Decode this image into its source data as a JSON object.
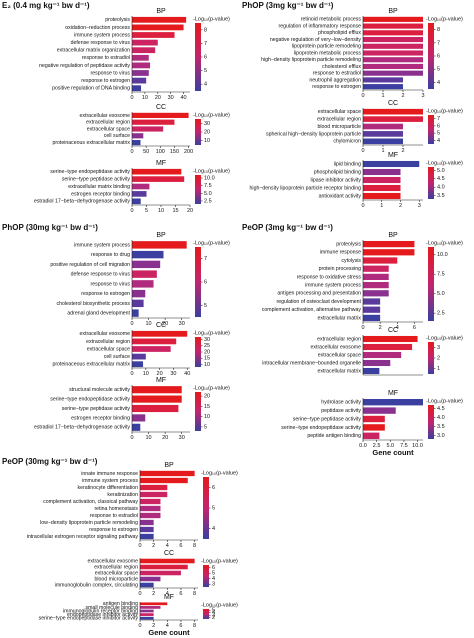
{
  "chart_data": [
    {
      "title": "E₂ (0.4 mg kg⁻¹ bw d⁻¹)",
      "charts": [
        {
          "type": "bar",
          "orientation": "horizontal",
          "title": "BP",
          "categories": [
            "proteolysis",
            "oxidation−reduction process",
            "immune system process",
            "defense response to virus",
            "extracellular matrix organization",
            "response to estradiol",
            "negative regulation of peptidase activity",
            "response to virus",
            "response to estrogen",
            "positive regulation of DNA binding"
          ],
          "values": [
            42,
            40,
            33,
            20,
            18,
            13,
            14,
            13,
            11,
            7
          ],
          "colors": [
            "#e41a1c",
            "#e41a1c",
            "#dc1f3e",
            "#cc2463",
            "#cc2463",
            "#b02b7e",
            "#b02b7e",
            "#8a3190",
            "#5a3a9c",
            "#3b3f9f"
          ],
          "xlim": [
            0,
            45
          ],
          "xticks": [
            0,
            10,
            20,
            30,
            40
          ],
          "legend_title": "-Log₁₀(p-value)",
          "clim": [
            3.5,
            8.5
          ],
          "cticks": [
            4,
            5,
            6,
            7,
            8
          ],
          "cmap": [
            "#3b3f9f",
            "#c2246e",
            "#e41a1c"
          ]
        },
        {
          "type": "bar",
          "orientation": "horizontal",
          "title": "CC",
          "categories": [
            "extracellular exosome",
            "extracellular region",
            "extracellular space",
            "cell surface",
            "proteinaceous extracellular matrix"
          ],
          "values": [
            200,
            150,
            110,
            40,
            30
          ],
          "colors": [
            "#e41a1c",
            "#dc1f3e",
            "#cc2463",
            "#8a3190",
            "#3b3f9f"
          ],
          "xlim": [
            0,
            205
          ],
          "xticks": [
            0,
            50,
            100,
            150,
            200
          ],
          "legend_title": "-Log₁₀(p-value)",
          "clim": [
            5,
            35
          ],
          "cticks": [
            10,
            20,
            30
          ],
          "cmap": [
            "#3b3f9f",
            "#c2246e",
            "#e41a1c"
          ]
        },
        {
          "type": "bar",
          "orientation": "horizontal",
          "title": "MF",
          "categories": [
            "serine−type endopeptidase activity",
            "serine−type peptidase activity",
            "extracellular matrix binding",
            "estrogen receptor binding",
            "estradiol 17−beta−dehydrogenase activity"
          ],
          "values": [
            17,
            18,
            6,
            5,
            3
          ],
          "colors": [
            "#e41a1c",
            "#dc1f3e",
            "#b02b7e",
            "#5a3a9c",
            "#3b3f9f"
          ],
          "xlim": [
            0,
            20
          ],
          "xticks": [
            0,
            5,
            10,
            15,
            20
          ],
          "legend_title": "-Log₁₀(p-value)",
          "clim": [
            1.5,
            11
          ],
          "cticks": [
            {
              "value": 2.5,
              "label": "2.5"
            },
            {
              "value": 5,
              "label": "5.0"
            },
            {
              "value": 7.5,
              "label": "7.5"
            },
            {
              "value": 10,
              "label": "10.0"
            }
          ],
          "cmap": [
            "#3b3f9f",
            "#c2246e",
            "#e41a1c"
          ]
        }
      ]
    },
    {
      "title": "PhOP (3mg kg⁻¹ bw d⁻¹)",
      "charts": [
        {
          "type": "bar",
          "orientation": "horizontal",
          "title": "BP",
          "categories": [
            "retinoid metabolic process",
            "regulation of inflammatory response",
            "phospholipid efflux",
            "negative regulation of very−low−density",
            "lipoprotein particle remodeling",
            "lipoprotein metabolic process",
            "high−density lipoprotein particle remodeling",
            "cholesterol efflux",
            "response to estradiol",
            "neutrophil aggregation",
            "response to estrogen"
          ],
          "values": [
            3,
            3,
            3,
            3,
            3,
            3,
            3,
            3,
            3,
            2,
            2
          ],
          "colors": [
            "#e41a1c",
            "#dc1f3e",
            "#dc1f3e",
            "#cc2463",
            "#cc2463",
            "#cc2463",
            "#b02b7e",
            "#b02b7e",
            "#8a3190",
            "#5a3a9c",
            "#3b3f9f"
          ],
          "xlim": [
            0,
            3
          ],
          "xticks": [
            0,
            1,
            2,
            3
          ],
          "legend_title": "-Log₁₀(p-value)",
          "clim": [
            3.5,
            8.5
          ],
          "cticks": [
            4,
            5,
            6,
            7,
            8
          ],
          "cmap": [
            "#3b3f9f",
            "#c2246e",
            "#e41a1c"
          ]
        },
        {
          "type": "bar",
          "orientation": "horizontal",
          "title": "CC",
          "categories": [
            "extracellular space",
            "extracellular region",
            "blood microparticle",
            "spherical high−density lipoprotein particle",
            "chylomicron"
          ],
          "values": [
            3,
            3,
            2,
            2,
            2
          ],
          "colors": [
            "#e41a1c",
            "#dc1f3e",
            "#b02b7e",
            "#5a3a9c",
            "#3b3f9f"
          ],
          "xlim": [
            0,
            3
          ],
          "xticks": [
            0,
            1,
            2
          ],
          "legend_title": "-Log₁₀(p-value)",
          "clim": [
            3.5,
            7.5
          ],
          "cticks": [
            4,
            5,
            6,
            7
          ],
          "cmap": [
            "#3b3f9f",
            "#c2246e",
            "#e41a1c"
          ]
        },
        {
          "type": "bar",
          "orientation": "horizontal",
          "title": "MF",
          "categories": [
            "lipid binding",
            "phospholipid binding",
            "lipase inhibitor activity",
            "high−density lipoprotein particle receptor binding",
            "antioxidant activity"
          ],
          "values": [
            3,
            2,
            2,
            2,
            2
          ],
          "colors": [
            "#3b3f9f",
            "#8a3190",
            "#cc2463",
            "#dc1f3e",
            "#e41a1c"
          ],
          "xlim": [
            0,
            3.2
          ],
          "xticks": [
            0,
            1,
            2,
            3
          ],
          "legend_title": "-Log₁₀(p-value)",
          "clim": [
            3.3,
            5.2
          ],
          "cticks": [
            3.5,
            {
              "value": 4,
              "label": "4.0"
            },
            4.5,
            {
              "value": 5,
              "label": "5.0"
            }
          ],
          "cmap": [
            "#3b3f9f",
            "#c2246e",
            "#e41a1c"
          ]
        }
      ]
    },
    {
      "title": "PhOP (30mg kg⁻¹ bw d⁻¹)",
      "charts": [
        {
          "type": "bar",
          "orientation": "horizontal",
          "title": "BP",
          "categories": [
            "immune system process",
            "response to drug",
            "positive regulation of cell migration",
            "defense response to virus",
            "response to virus",
            "response to estrogen",
            "cholesterol biosynthetic process",
            "adrenal gland development"
          ],
          "values": [
            33,
            19,
            17,
            15,
            13,
            8,
            7,
            4
          ],
          "colors": [
            "#e41a1c",
            "#3b3f9f",
            "#8a3190",
            "#cc2463",
            "#b02b7e",
            "#8a3190",
            "#5a3a9c",
            "#3b3f9f"
          ],
          "xlim": [
            0,
            35
          ],
          "xticks": [
            0,
            10,
            20,
            30
          ],
          "legend_title": "-Log₁₀(p-value)",
          "clim": [
            4.5,
            7.5
          ],
          "cticks": [
            5,
            6,
            7
          ],
          "cmap": [
            "#3b3f9f",
            "#c2246e",
            "#e41a1c"
          ]
        },
        {
          "type": "bar",
          "orientation": "horizontal",
          "title": "CC",
          "categories": [
            "extracellular exosome",
            "extracellular region",
            "extracellular space",
            "cell surface",
            "proteinaceous extracellular matrix"
          ],
          "values": [
            40,
            32,
            28,
            10,
            8
          ],
          "colors": [
            "#e41a1c",
            "#dc1f3e",
            "#cc2463",
            "#5a3a9c",
            "#3b3f9f"
          ],
          "xlim": [
            0,
            42
          ],
          "xticks": [
            0,
            10,
            20,
            30,
            40
          ],
          "legend_title": "-Log₁₀(p-value)",
          "clim": [
            8,
            32
          ],
          "cticks": [
            10,
            15,
            20,
            25,
            30
          ],
          "cmap": [
            "#3b3f9f",
            "#c2246e",
            "#e41a1c"
          ]
        },
        {
          "type": "bar",
          "orientation": "horizontal",
          "title": "MF",
          "categories": [
            "structural molecule activity",
            "serine−type endopeptidase activity",
            "serine−type peptidase activity",
            "estrogen receptor binding",
            "estradiol 17−beta−dehydrogenase activity"
          ],
          "values": [
            30,
            30,
            28,
            8,
            5
          ],
          "colors": [
            "#e41a1c",
            "#e41a1c",
            "#dc1f3e",
            "#8a3190",
            "#3b3f9f"
          ],
          "xlim": [
            0,
            35
          ],
          "xticks": [
            0,
            10,
            20,
            30
          ],
          "legend_title": "-Log₁₀(p-value)",
          "clim": [
            3,
            22
          ],
          "cticks": [
            5,
            10,
            15,
            20
          ],
          "cmap": [
            "#3b3f9f",
            "#c2246e",
            "#e41a1c"
          ]
        }
      ]
    },
    {
      "title": "PeOP (3mg kg⁻¹ bw d⁻¹)",
      "xlabel": "Gene count",
      "charts": [
        {
          "type": "bar",
          "orientation": "horizontal",
          "title": "BP",
          "categories": [
            "proteolysis",
            "immune response",
            "cytolysis",
            "protein processing",
            "response to oxidative stress",
            "immune system process",
            "antigen processing and presentation",
            "regulation of osteoclast development",
            "complement activation, alternative pathway",
            "extracellular matrix"
          ],
          "values": [
            6,
            6,
            4,
            3,
            3,
            3,
            3,
            2,
            2,
            2
          ],
          "colors": [
            "#e41a1c",
            "#e41a1c",
            "#dc1f3e",
            "#cc2463",
            "#b02b7e",
            "#b02b7e",
            "#8a3190",
            "#5a3a9c",
            "#5a3a9c",
            "#3b3f9f"
          ],
          "xlim": [
            0,
            7
          ],
          "xticks": [
            0,
            2,
            4,
            6
          ],
          "legend_title": "-Log₁₀(p-value)",
          "clim": [
            1.5,
            11
          ],
          "cticks": [
            {
              "value": 2.5,
              "label": "2.5"
            },
            {
              "value": 5,
              "label": "5.0"
            },
            {
              "value": 7.5,
              "label": "7.5"
            },
            {
              "value": 10,
              "label": "10.0"
            }
          ],
          "cmap": [
            "#3b3f9f",
            "#c2246e",
            "#e41a1c"
          ]
        },
        {
          "type": "bar",
          "orientation": "horizontal",
          "title": "CC",
          "categories": [
            "extracellular region",
            "extracellular exosome",
            "extracellular space",
            "intracellular membrane−bounded organelle",
            "extracellular matrix"
          ],
          "values": [
            10,
            9,
            7,
            5,
            3
          ],
          "colors": [
            "#e41a1c",
            "#dc1f3e",
            "#b02b7e",
            "#8a3190",
            "#3b3f9f"
          ],
          "xlim": [
            0,
            11
          ],
          "legend_title": "-Log₁₀(p-value)",
          "clim": [
            0.5,
            3.5
          ],
          "cticks": [
            1,
            2,
            3
          ],
          "cmap": [
            "#3b3f9f",
            "#c2246e",
            "#e41a1c"
          ]
        },
        {
          "type": "bar",
          "orientation": "horizontal",
          "title": "MF",
          "categories": [
            "hydrolase activity",
            "peptidase activity",
            "serine−type peptidase activity",
            "serine−type endopeptidase activity",
            "peptide antigen binding"
          ],
          "values": [
            11,
            6,
            4,
            4,
            3
          ],
          "colors": [
            "#3b3f9f",
            "#8a3190",
            "#dc1f3e",
            "#e41a1c",
            "#cc2463"
          ],
          "xlim": [
            0,
            11
          ],
          "xticks": [
            {
              "value": 0,
              "label": "0.0"
            },
            {
              "value": 2.5,
              "label": "2.5"
            },
            {
              "value": 5,
              "label": "5.0"
            },
            {
              "value": 7.5,
              "label": "7.5"
            },
            {
              "value": 10,
              "label": "10.0"
            }
          ],
          "legend_title": "-Log₁₀(p-value)",
          "clim": [
            2.8,
            4.7
          ],
          "cticks": [
            {
              "value": 3,
              "label": "3.0"
            },
            3.5,
            {
              "value": 4,
              "label": "4.0"
            },
            4.5
          ],
          "cmap": [
            "#3b3f9f",
            "#c2246e",
            "#e41a1c"
          ]
        }
      ]
    },
    {
      "title": "PeOP (30mg kg⁻¹ bw d⁻¹)",
      "xlabel": "Gene count",
      "charts": [
        {
          "type": "bar",
          "orientation": "horizontal",
          "title": "BP",
          "categories": [
            "innate immune response",
            "immune system process",
            "keratinocyte differentiation",
            "keratinization",
            "complement activation, classical pathway",
            "retina homeostasis",
            "response to estradiol",
            "low−density lipoprotein particle remodeling",
            "response to estrogen",
            "intracellular estrogen receptor signaling pathway"
          ],
          "values": [
            8,
            7,
            4,
            4,
            3,
            3,
            3,
            2,
            2,
            2
          ],
          "colors": [
            "#e41a1c",
            "#e41a1c",
            "#dc1f3e",
            "#cc2463",
            "#cc2463",
            "#b02b7e",
            "#b02b7e",
            "#8a3190",
            "#5a3a9c",
            "#3b3f9f"
          ],
          "xlim": [
            0,
            8.5
          ],
          "xticks": [
            0,
            2,
            4,
            6,
            8
          ],
          "legend_title": "-Log₁₀(p-value)",
          "clim": [
            3.5,
            6.5
          ],
          "cticks": [
            4,
            5,
            6
          ],
          "cmap": [
            "#3b3f9f",
            "#c2246e",
            "#e41a1c"
          ]
        },
        {
          "type": "bar",
          "orientation": "horizontal",
          "title": "CC",
          "categories": [
            "extracellular exosome",
            "extracellular region",
            "extracellular space",
            "blood microparticle",
            "immunoglobulin complex, circulating"
          ],
          "values": [
            8,
            7,
            6,
            3,
            2
          ],
          "colors": [
            "#e41a1c",
            "#dc1f3e",
            "#cc2463",
            "#8a3190",
            "#3b3f9f"
          ],
          "xlim": [
            0,
            8.5
          ],
          "xticks": [
            0,
            2,
            4,
            6,
            8
          ],
          "legend_title": "-Log₁₀(p-value)",
          "clim": [
            2.5,
            6.5
          ],
          "cticks": [
            3,
            4,
            5,
            6
          ],
          "cmap": [
            "#3b3f9f",
            "#c2246e",
            "#e41a1c"
          ]
        },
        {
          "type": "bar",
          "orientation": "horizontal",
          "title": "MF",
          "categories": [
            "antigen binding",
            "small molecule binding",
            "immunoglobulin receptor binding",
            "endopeptidase inhibitor activity",
            "serine−type endopeptidase inhibitor activity"
          ],
          "values": [
            4,
            3,
            2,
            2,
            2
          ],
          "colors": [
            "#e41a1c",
            "#b02b7e",
            "#8a3190",
            "#cc2463",
            "#3b3f9f"
          ],
          "xlim": [
            0,
            8.5
          ],
          "xticks": [
            0,
            2,
            4,
            6,
            8
          ],
          "legend_title": "-Log₁₀(p-value)",
          "clim": [
            1.5,
            5.5
          ],
          "cticks": [
            2,
            3,
            4,
            5
          ],
          "cmap": [
            "#3b3f9f",
            "#c2246e",
            "#e41a1c"
          ]
        }
      ]
    }
  ]
}
